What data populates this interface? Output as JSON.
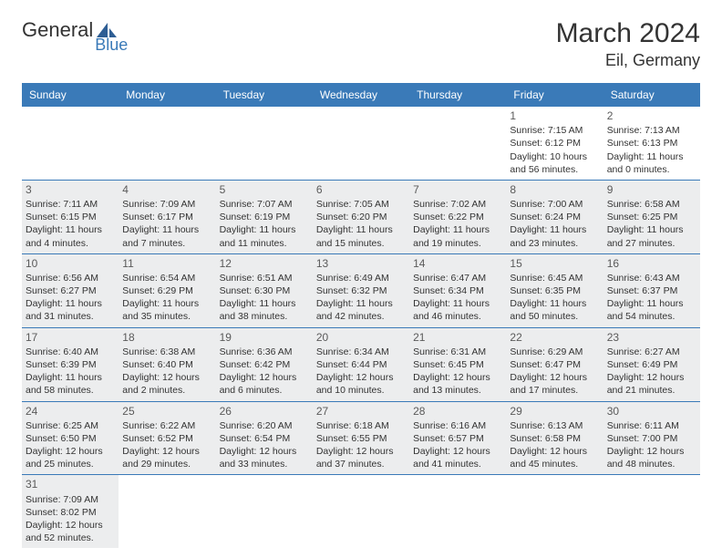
{
  "logo": {
    "text1": "General",
    "text2": "Blue",
    "text2_color": "#3a7ab8",
    "icon_color": "#2e5e94"
  },
  "header": {
    "month": "March 2024",
    "location": "Eil, Germany"
  },
  "colors": {
    "header_bg": "#3a7ab8",
    "header_fg": "#ffffff",
    "row_border": "#3a7ab8",
    "shaded_bg": "#ecedee"
  },
  "day_labels": [
    "Sunday",
    "Monday",
    "Tuesday",
    "Wednesday",
    "Thursday",
    "Friday",
    "Saturday"
  ],
  "weeks": [
    [
      {
        "day": "",
        "sunrise": "",
        "sunset": "",
        "daylight1": "",
        "daylight2": "",
        "shaded": false
      },
      {
        "day": "",
        "sunrise": "",
        "sunset": "",
        "daylight1": "",
        "daylight2": "",
        "shaded": false
      },
      {
        "day": "",
        "sunrise": "",
        "sunset": "",
        "daylight1": "",
        "daylight2": "",
        "shaded": false
      },
      {
        "day": "",
        "sunrise": "",
        "sunset": "",
        "daylight1": "",
        "daylight2": "",
        "shaded": false
      },
      {
        "day": "",
        "sunrise": "",
        "sunset": "",
        "daylight1": "",
        "daylight2": "",
        "shaded": false
      },
      {
        "day": "1",
        "sunrise": "Sunrise: 7:15 AM",
        "sunset": "Sunset: 6:12 PM",
        "daylight1": "Daylight: 10 hours",
        "daylight2": "and 56 minutes.",
        "shaded": false
      },
      {
        "day": "2",
        "sunrise": "Sunrise: 7:13 AM",
        "sunset": "Sunset: 6:13 PM",
        "daylight1": "Daylight: 11 hours",
        "daylight2": "and 0 minutes.",
        "shaded": false
      }
    ],
    [
      {
        "day": "3",
        "sunrise": "Sunrise: 7:11 AM",
        "sunset": "Sunset: 6:15 PM",
        "daylight1": "Daylight: 11 hours",
        "daylight2": "and 4 minutes.",
        "shaded": true
      },
      {
        "day": "4",
        "sunrise": "Sunrise: 7:09 AM",
        "sunset": "Sunset: 6:17 PM",
        "daylight1": "Daylight: 11 hours",
        "daylight2": "and 7 minutes.",
        "shaded": true
      },
      {
        "day": "5",
        "sunrise": "Sunrise: 7:07 AM",
        "sunset": "Sunset: 6:19 PM",
        "daylight1": "Daylight: 11 hours",
        "daylight2": "and 11 minutes.",
        "shaded": true
      },
      {
        "day": "6",
        "sunrise": "Sunrise: 7:05 AM",
        "sunset": "Sunset: 6:20 PM",
        "daylight1": "Daylight: 11 hours",
        "daylight2": "and 15 minutes.",
        "shaded": true
      },
      {
        "day": "7",
        "sunrise": "Sunrise: 7:02 AM",
        "sunset": "Sunset: 6:22 PM",
        "daylight1": "Daylight: 11 hours",
        "daylight2": "and 19 minutes.",
        "shaded": true
      },
      {
        "day": "8",
        "sunrise": "Sunrise: 7:00 AM",
        "sunset": "Sunset: 6:24 PM",
        "daylight1": "Daylight: 11 hours",
        "daylight2": "and 23 minutes.",
        "shaded": true
      },
      {
        "day": "9",
        "sunrise": "Sunrise: 6:58 AM",
        "sunset": "Sunset: 6:25 PM",
        "daylight1": "Daylight: 11 hours",
        "daylight2": "and 27 minutes.",
        "shaded": true
      }
    ],
    [
      {
        "day": "10",
        "sunrise": "Sunrise: 6:56 AM",
        "sunset": "Sunset: 6:27 PM",
        "daylight1": "Daylight: 11 hours",
        "daylight2": "and 31 minutes.",
        "shaded": true
      },
      {
        "day": "11",
        "sunrise": "Sunrise: 6:54 AM",
        "sunset": "Sunset: 6:29 PM",
        "daylight1": "Daylight: 11 hours",
        "daylight2": "and 35 minutes.",
        "shaded": true
      },
      {
        "day": "12",
        "sunrise": "Sunrise: 6:51 AM",
        "sunset": "Sunset: 6:30 PM",
        "daylight1": "Daylight: 11 hours",
        "daylight2": "and 38 minutes.",
        "shaded": true
      },
      {
        "day": "13",
        "sunrise": "Sunrise: 6:49 AM",
        "sunset": "Sunset: 6:32 PM",
        "daylight1": "Daylight: 11 hours",
        "daylight2": "and 42 minutes.",
        "shaded": true
      },
      {
        "day": "14",
        "sunrise": "Sunrise: 6:47 AM",
        "sunset": "Sunset: 6:34 PM",
        "daylight1": "Daylight: 11 hours",
        "daylight2": "and 46 minutes.",
        "shaded": true
      },
      {
        "day": "15",
        "sunrise": "Sunrise: 6:45 AM",
        "sunset": "Sunset: 6:35 PM",
        "daylight1": "Daylight: 11 hours",
        "daylight2": "and 50 minutes.",
        "shaded": true
      },
      {
        "day": "16",
        "sunrise": "Sunrise: 6:43 AM",
        "sunset": "Sunset: 6:37 PM",
        "daylight1": "Daylight: 11 hours",
        "daylight2": "and 54 minutes.",
        "shaded": true
      }
    ],
    [
      {
        "day": "17",
        "sunrise": "Sunrise: 6:40 AM",
        "sunset": "Sunset: 6:39 PM",
        "daylight1": "Daylight: 11 hours",
        "daylight2": "and 58 minutes.",
        "shaded": true
      },
      {
        "day": "18",
        "sunrise": "Sunrise: 6:38 AM",
        "sunset": "Sunset: 6:40 PM",
        "daylight1": "Daylight: 12 hours",
        "daylight2": "and 2 minutes.",
        "shaded": true
      },
      {
        "day": "19",
        "sunrise": "Sunrise: 6:36 AM",
        "sunset": "Sunset: 6:42 PM",
        "daylight1": "Daylight: 12 hours",
        "daylight2": "and 6 minutes.",
        "shaded": true
      },
      {
        "day": "20",
        "sunrise": "Sunrise: 6:34 AM",
        "sunset": "Sunset: 6:44 PM",
        "daylight1": "Daylight: 12 hours",
        "daylight2": "and 10 minutes.",
        "shaded": true
      },
      {
        "day": "21",
        "sunrise": "Sunrise: 6:31 AM",
        "sunset": "Sunset: 6:45 PM",
        "daylight1": "Daylight: 12 hours",
        "daylight2": "and 13 minutes.",
        "shaded": true
      },
      {
        "day": "22",
        "sunrise": "Sunrise: 6:29 AM",
        "sunset": "Sunset: 6:47 PM",
        "daylight1": "Daylight: 12 hours",
        "daylight2": "and 17 minutes.",
        "shaded": true
      },
      {
        "day": "23",
        "sunrise": "Sunrise: 6:27 AM",
        "sunset": "Sunset: 6:49 PM",
        "daylight1": "Daylight: 12 hours",
        "daylight2": "and 21 minutes.",
        "shaded": true
      }
    ],
    [
      {
        "day": "24",
        "sunrise": "Sunrise: 6:25 AM",
        "sunset": "Sunset: 6:50 PM",
        "daylight1": "Daylight: 12 hours",
        "daylight2": "and 25 minutes.",
        "shaded": true
      },
      {
        "day": "25",
        "sunrise": "Sunrise: 6:22 AM",
        "sunset": "Sunset: 6:52 PM",
        "daylight1": "Daylight: 12 hours",
        "daylight2": "and 29 minutes.",
        "shaded": true
      },
      {
        "day": "26",
        "sunrise": "Sunrise: 6:20 AM",
        "sunset": "Sunset: 6:54 PM",
        "daylight1": "Daylight: 12 hours",
        "daylight2": "and 33 minutes.",
        "shaded": true
      },
      {
        "day": "27",
        "sunrise": "Sunrise: 6:18 AM",
        "sunset": "Sunset: 6:55 PM",
        "daylight1": "Daylight: 12 hours",
        "daylight2": "and 37 minutes.",
        "shaded": true
      },
      {
        "day": "28",
        "sunrise": "Sunrise: 6:16 AM",
        "sunset": "Sunset: 6:57 PM",
        "daylight1": "Daylight: 12 hours",
        "daylight2": "and 41 minutes.",
        "shaded": true
      },
      {
        "day": "29",
        "sunrise": "Sunrise: 6:13 AM",
        "sunset": "Sunset: 6:58 PM",
        "daylight1": "Daylight: 12 hours",
        "daylight2": "and 45 minutes.",
        "shaded": true
      },
      {
        "day": "30",
        "sunrise": "Sunrise: 6:11 AM",
        "sunset": "Sunset: 7:00 PM",
        "daylight1": "Daylight: 12 hours",
        "daylight2": "and 48 minutes.",
        "shaded": true
      }
    ],
    [
      {
        "day": "31",
        "sunrise": "Sunrise: 7:09 AM",
        "sunset": "Sunset: 8:02 PM",
        "daylight1": "Daylight: 12 hours",
        "daylight2": "and 52 minutes.",
        "shaded": true
      },
      {
        "day": "",
        "sunrise": "",
        "sunset": "",
        "daylight1": "",
        "daylight2": "",
        "shaded": false
      },
      {
        "day": "",
        "sunrise": "",
        "sunset": "",
        "daylight1": "",
        "daylight2": "",
        "shaded": false
      },
      {
        "day": "",
        "sunrise": "",
        "sunset": "",
        "daylight1": "",
        "daylight2": "",
        "shaded": false
      },
      {
        "day": "",
        "sunrise": "",
        "sunset": "",
        "daylight1": "",
        "daylight2": "",
        "shaded": false
      },
      {
        "day": "",
        "sunrise": "",
        "sunset": "",
        "daylight1": "",
        "daylight2": "",
        "shaded": false
      },
      {
        "day": "",
        "sunrise": "",
        "sunset": "",
        "daylight1": "",
        "daylight2": "",
        "shaded": false
      }
    ]
  ]
}
